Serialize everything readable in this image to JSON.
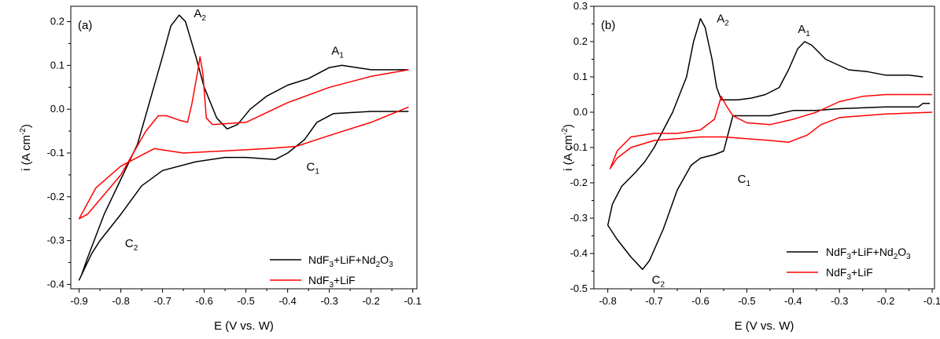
{
  "figure": {
    "panels": [
      {
        "panel_label": "(a)",
        "peak_labels": [
          {
            "name": "A",
            "sub": "2",
            "x": -0.625,
            "y": 0.21
          },
          {
            "name": "A",
            "sub": "1",
            "x": -0.295,
            "y": 0.125
          },
          {
            "name": "C",
            "sub": "1",
            "x": -0.355,
            "y": -0.14
          },
          {
            "name": "C",
            "sub": "2",
            "x": -0.79,
            "y": -0.315
          }
        ],
        "legend": [
          {
            "text": "NdF",
            "s1": "3",
            "t2": "+LiF+Nd",
            "s2": "2",
            "t3": "O",
            "s3": "3",
            "color": "#000000"
          },
          {
            "text": "NdF",
            "s1": "3",
            "t2": "+LiF",
            "s2": "",
            "t3": "",
            "s3": "",
            "color": "#ff0000"
          }
        ]
      },
      {
        "panel_label": "(b)",
        "peak_labels": [
          {
            "name": "A",
            "sub": "2",
            "x": -0.565,
            "y": 0.255
          },
          {
            "name": "A",
            "sub": "1",
            "x": -0.39,
            "y": 0.225
          },
          {
            "name": "C",
            "sub": "1",
            "x": -0.52,
            "y": -0.2
          },
          {
            "name": "C",
            "sub": "2",
            "x": -0.705,
            "y": -0.485
          }
        ],
        "legend": [
          {
            "text": "NdF",
            "s1": "3",
            "t2": "+LiF+Nd",
            "s2": "2",
            "t3": "O",
            "s3": "3",
            "color": "#000000"
          },
          {
            "text": "NdF",
            "s1": "3",
            "t2": "+LiF",
            "s2": "",
            "t3": "",
            "s3": "",
            "color": "#ff0000"
          }
        ]
      }
    ]
  },
  "chart_data": [
    {
      "type": "line",
      "xlabel": "E (V vs. W)",
      "ylabel": "i (A cm",
      "ylabel_sup": "-2",
      "ylabel_end": ")",
      "xlim": [
        -0.92,
        -0.09
      ],
      "ylim": [
        -0.41,
        0.235
      ],
      "xticks": [
        -0.9,
        -0.8,
        -0.7,
        -0.6,
        -0.5,
        -0.4,
        -0.3,
        -0.2,
        -0.1
      ],
      "xtick_labels": [
        "-0.9",
        "-0.8",
        "-0.7",
        "-0.6",
        "-0.5",
        "-0.4",
        "-0.3",
        "-0.2",
        "-0.1"
      ],
      "yticks": [
        -0.4,
        -0.3,
        -0.2,
        -0.1,
        0.0,
        0.1,
        0.2
      ],
      "ytick_labels": [
        "-0.4",
        "-0.3",
        "-0.2",
        "-0.1",
        "0.0",
        "0.1",
        "0.2"
      ],
      "series": [
        {
          "name": "NdF3+LiF+Nd2O3",
          "color": "#000000",
          "points": [
            [
              -0.11,
              -0.005
            ],
            [
              -0.2,
              -0.005
            ],
            [
              -0.29,
              -0.01
            ],
            [
              -0.33,
              -0.03
            ],
            [
              -0.36,
              -0.07
            ],
            [
              -0.4,
              -0.1
            ],
            [
              -0.43,
              -0.115
            ],
            [
              -0.5,
              -0.11
            ],
            [
              -0.55,
              -0.11
            ],
            [
              -0.62,
              -0.12
            ],
            [
              -0.7,
              -0.14
            ],
            [
              -0.75,
              -0.175
            ],
            [
              -0.8,
              -0.24
            ],
            [
              -0.85,
              -0.3
            ],
            [
              -0.87,
              -0.33
            ],
            [
              -0.89,
              -0.37
            ],
            [
              -0.9,
              -0.39
            ],
            [
              -0.895,
              -0.38
            ],
            [
              -0.88,
              -0.34
            ],
            [
              -0.84,
              -0.24
            ],
            [
              -0.8,
              -0.16
            ],
            [
              -0.76,
              -0.08
            ],
            [
              -0.73,
              0.02
            ],
            [
              -0.7,
              0.12
            ],
            [
              -0.68,
              0.19
            ],
            [
              -0.66,
              0.215
            ],
            [
              -0.645,
              0.2
            ],
            [
              -0.62,
              0.12
            ],
            [
              -0.6,
              0.05
            ],
            [
              -0.57,
              -0.02
            ],
            [
              -0.545,
              -0.045
            ],
            [
              -0.52,
              -0.035
            ],
            [
              -0.49,
              0.0
            ],
            [
              -0.45,
              0.03
            ],
            [
              -0.4,
              0.055
            ],
            [
              -0.35,
              0.07
            ],
            [
              -0.3,
              0.095
            ],
            [
              -0.27,
              0.1
            ],
            [
              -0.2,
              0.09
            ],
            [
              -0.11,
              0.09
            ]
          ]
        },
        {
          "name": "NdF3+LiF",
          "color": "#ff0000",
          "points": [
            [
              -0.11,
              0.005
            ],
            [
              -0.2,
              -0.03
            ],
            [
              -0.3,
              -0.06
            ],
            [
              -0.38,
              -0.085
            ],
            [
              -0.45,
              -0.09
            ],
            [
              -0.55,
              -0.095
            ],
            [
              -0.65,
              -0.1
            ],
            [
              -0.72,
              -0.09
            ],
            [
              -0.8,
              -0.13
            ],
            [
              -0.86,
              -0.18
            ],
            [
              -0.9,
              -0.25
            ],
            [
              -0.88,
              -0.24
            ],
            [
              -0.8,
              -0.15
            ],
            [
              -0.74,
              -0.05
            ],
            [
              -0.71,
              -0.015
            ],
            [
              -0.69,
              -0.015
            ],
            [
              -0.66,
              -0.025
            ],
            [
              -0.64,
              -0.03
            ],
            [
              -0.63,
              0.01
            ],
            [
              -0.615,
              0.09
            ],
            [
              -0.61,
              0.12
            ],
            [
              -0.603,
              0.08
            ],
            [
              -0.595,
              -0.02
            ],
            [
              -0.58,
              -0.035
            ],
            [
              -0.5,
              -0.03
            ],
            [
              -0.4,
              0.015
            ],
            [
              -0.3,
              0.05
            ],
            [
              -0.2,
              0.075
            ],
            [
              -0.11,
              0.09
            ]
          ]
        }
      ]
    },
    {
      "type": "line",
      "xlabel": "E (V vs. W)",
      "ylabel": "i (A cm",
      "ylabel_sup": "-2",
      "ylabel_end": ")",
      "xlim": [
        -0.83,
        -0.095
      ],
      "ylim": [
        -0.5,
        0.3
      ],
      "xticks": [
        -0.8,
        -0.7,
        -0.6,
        -0.5,
        -0.4,
        -0.3,
        -0.2,
        -0.1
      ],
      "xtick_labels": [
        "-0.8",
        "-0.7",
        "-0.6",
        "-0.5",
        "-0.4",
        "-0.3",
        "-0.2",
        "-0.1"
      ],
      "yticks": [
        -0.5,
        -0.4,
        -0.3,
        -0.2,
        -0.1,
        0.0,
        0.1,
        0.2,
        0.3
      ],
      "ytick_labels": [
        "-0.5",
        "-0.4",
        "-0.3",
        "-0.2",
        "-0.1",
        "0.0",
        "0.1",
        "0.2",
        "0.3"
      ],
      "series": [
        {
          "name": "NdF3+LiF+Nd2O3",
          "color": "#000000",
          "points": [
            [
              -0.105,
              0.025
            ],
            [
              -0.12,
              0.025
            ],
            [
              -0.13,
              0.015
            ],
            [
              -0.2,
              0.015
            ],
            [
              -0.3,
              0.01
            ],
            [
              -0.35,
              0.005
            ],
            [
              -0.4,
              0.005
            ],
            [
              -0.45,
              -0.01
            ],
            [
              -0.5,
              -0.01
            ],
            [
              -0.53,
              -0.01
            ],
            [
              -0.54,
              -0.06
            ],
            [
              -0.55,
              -0.11
            ],
            [
              -0.57,
              -0.12
            ],
            [
              -0.6,
              -0.13
            ],
            [
              -0.62,
              -0.15
            ],
            [
              -0.65,
              -0.22
            ],
            [
              -0.68,
              -0.33
            ],
            [
              -0.71,
              -0.42
            ],
            [
              -0.725,
              -0.445
            ],
            [
              -0.75,
              -0.41
            ],
            [
              -0.78,
              -0.36
            ],
            [
              -0.8,
              -0.32
            ],
            [
              -0.79,
              -0.26
            ],
            [
              -0.77,
              -0.21
            ],
            [
              -0.74,
              -0.17
            ],
            [
              -0.72,
              -0.14
            ],
            [
              -0.7,
              -0.1
            ],
            [
              -0.66,
              0.0
            ],
            [
              -0.63,
              0.1
            ],
            [
              -0.615,
              0.2
            ],
            [
              -0.6,
              0.265
            ],
            [
              -0.59,
              0.24
            ],
            [
              -0.575,
              0.15
            ],
            [
              -0.565,
              0.07
            ],
            [
              -0.555,
              0.035
            ],
            [
              -0.52,
              0.035
            ],
            [
              -0.49,
              0.04
            ],
            [
              -0.46,
              0.05
            ],
            [
              -0.43,
              0.07
            ],
            [
              -0.41,
              0.12
            ],
            [
              -0.39,
              0.18
            ],
            [
              -0.375,
              0.2
            ],
            [
              -0.36,
              0.19
            ],
            [
              -0.33,
              0.15
            ],
            [
              -0.28,
              0.12
            ],
            [
              -0.24,
              0.115
            ],
            [
              -0.2,
              0.105
            ],
            [
              -0.15,
              0.105
            ],
            [
              -0.12,
              0.1
            ]
          ]
        },
        {
          "name": "NdF3+LiF",
          "color": "#ff0000",
          "points": [
            [
              -0.1,
              0.0
            ],
            [
              -0.2,
              -0.005
            ],
            [
              -0.3,
              -0.015
            ],
            [
              -0.34,
              -0.035
            ],
            [
              -0.37,
              -0.065
            ],
            [
              -0.41,
              -0.085
            ],
            [
              -0.45,
              -0.08
            ],
            [
              -0.5,
              -0.075
            ],
            [
              -0.55,
              -0.07
            ],
            [
              -0.6,
              -0.07
            ],
            [
              -0.65,
              -0.075
            ],
            [
              -0.7,
              -0.08
            ],
            [
              -0.75,
              -0.1
            ],
            [
              -0.78,
              -0.13
            ],
            [
              -0.795,
              -0.16
            ],
            [
              -0.78,
              -0.11
            ],
            [
              -0.75,
              -0.07
            ],
            [
              -0.7,
              -0.06
            ],
            [
              -0.65,
              -0.06
            ],
            [
              -0.6,
              -0.05
            ],
            [
              -0.57,
              -0.02
            ],
            [
              -0.555,
              0.045
            ],
            [
              -0.545,
              0.02
            ],
            [
              -0.53,
              -0.01
            ],
            [
              -0.5,
              -0.03
            ],
            [
              -0.45,
              -0.035
            ],
            [
              -0.4,
              -0.02
            ],
            [
              -0.35,
              0.0
            ],
            [
              -0.3,
              0.03
            ],
            [
              -0.25,
              0.045
            ],
            [
              -0.2,
              0.05
            ],
            [
              -0.1,
              0.05
            ]
          ]
        }
      ]
    }
  ]
}
